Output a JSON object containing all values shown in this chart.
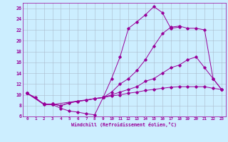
{
  "xlabel": "Windchill (Refroidissement éolien,°C)",
  "bg_color": "#cceeff",
  "grid_color": "#aabbcc",
  "line_color": "#990099",
  "xlim": [
    -0.5,
    23.5
  ],
  "ylim": [
    6,
    27
  ],
  "yticks": [
    6,
    8,
    10,
    12,
    14,
    16,
    18,
    20,
    22,
    24,
    26
  ],
  "xticks": [
    0,
    1,
    2,
    3,
    4,
    5,
    6,
    7,
    8,
    9,
    10,
    11,
    12,
    13,
    14,
    15,
    16,
    17,
    18,
    19,
    20,
    21,
    22,
    23
  ],
  "series": [
    {
      "x": [
        0,
        1,
        2,
        3,
        4,
        5,
        6,
        7,
        8,
        9,
        10,
        11,
        12,
        13,
        14,
        15,
        16,
        17,
        18
      ],
      "y": [
        10.3,
        9.5,
        8.2,
        8.2,
        7.5,
        7.0,
        6.8,
        6.5,
        6.3,
        9.5,
        13.0,
        17.0,
        22.3,
        23.5,
        24.8,
        26.3,
        25.2,
        22.3,
        22.5
      ]
    },
    {
      "x": [
        0,
        2,
        3,
        9,
        10,
        11,
        12,
        13,
        14,
        15,
        16,
        17,
        18,
        19,
        20,
        21,
        22,
        23
      ],
      "y": [
        10.3,
        8.2,
        8.2,
        9.5,
        10.5,
        12.0,
        13.0,
        14.5,
        16.5,
        19.0,
        21.3,
        22.5,
        22.7,
        22.3,
        22.3,
        22.0,
        13.0,
        11.0
      ]
    },
    {
      "x": [
        0,
        2,
        3,
        4,
        5,
        6,
        7,
        8,
        9,
        10,
        11,
        12,
        13,
        14,
        15,
        16,
        17,
        18,
        19,
        20,
        21,
        22,
        23
      ],
      "y": [
        10.3,
        8.3,
        8.3,
        8.0,
        8.5,
        8.8,
        9.0,
        9.3,
        9.5,
        10.0,
        10.5,
        11.0,
        11.5,
        12.5,
        13.0,
        14.0,
        15.0,
        15.5,
        16.5,
        17.0,
        15.0,
        13.0,
        11.0
      ]
    },
    {
      "x": [
        0,
        2,
        3,
        4,
        5,
        6,
        7,
        8,
        9,
        10,
        11,
        12,
        13,
        14,
        15,
        16,
        17,
        18,
        19,
        20,
        21,
        22,
        23
      ],
      "y": [
        10.3,
        8.3,
        8.3,
        8.0,
        8.5,
        8.8,
        9.0,
        9.3,
        9.5,
        9.8,
        10.0,
        10.3,
        10.5,
        10.8,
        11.0,
        11.2,
        11.4,
        11.5,
        11.5,
        11.5,
        11.5,
        11.2,
        11.0
      ]
    }
  ]
}
